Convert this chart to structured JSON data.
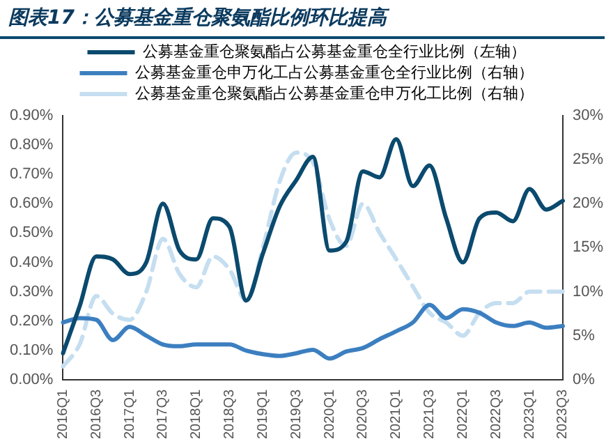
{
  "chart_data": {
    "type": "line",
    "title": "图表17：公募基金重仓聚氨酯比例环比提高",
    "categories": [
      "2016Q1",
      null,
      "2016Q3",
      null,
      "2017Q1",
      null,
      "2017Q3",
      null,
      "2018Q1",
      null,
      "2018Q3",
      null,
      "2019Q1",
      null,
      "2019Q3",
      null,
      "2020Q1",
      null,
      "2020Q3",
      null,
      "2021Q1",
      null,
      "2021Q3",
      null,
      "2022Q1",
      null,
      "2022Q3",
      null,
      "2023Q1",
      null,
      "2023Q3"
    ],
    "series": [
      {
        "name": "公募基金重仓聚氨酯占公募基金重仓全行业比例（左轴）",
        "color": "#0b4a6e",
        "line_style": "solid",
        "values": [
          0.09,
          0.25,
          0.42,
          0.41,
          0.36,
          0.4,
          0.6,
          0.44,
          0.41,
          0.55,
          0.52,
          0.27,
          0.43,
          0.59,
          0.68,
          0.76,
          0.44,
          0.47,
          0.71,
          0.69,
          0.82,
          0.66,
          0.73,
          0.55,
          0.4,
          0.55,
          0.57,
          0.54,
          0.65,
          0.58,
          0.61
        ]
      },
      {
        "name": "公募基金重仓申万化工占公募基金重仓全行业比例（右轴）",
        "color": "#3c7fc0",
        "axis": "y2",
        "line_style": "solid",
        "values": [
          6.5,
          7,
          6.8,
          4.5,
          6,
          5,
          4,
          3.8,
          4,
          4,
          4,
          3.3,
          2.9,
          2.7,
          3,
          3.4,
          2.4,
          3.2,
          3.6,
          4.6,
          5.5,
          6.5,
          8.5,
          7,
          8,
          7.6,
          6.5,
          6.1,
          6.5,
          5.9,
          6.1
        ]
      },
      {
        "name": "公募基金重仓聚氨酯占公募基金重仓申万化工比例（右轴）",
        "color": "#c5def0",
        "axis": "y2",
        "line_style": "dashed",
        "values": [
          1.5,
          4,
          9.5,
          7.5,
          6.8,
          10,
          16,
          12,
          10.5,
          14,
          12.5,
          9,
          15,
          22.5,
          25.8,
          24.7,
          18.2,
          15.2,
          20,
          16.7,
          13.7,
          10.6,
          7.6,
          6.5,
          5,
          7.6,
          8.7,
          8.7,
          10,
          10,
          10
        ]
      }
    ],
    "ylim": [
      0,
      0.9
    ],
    "yticks": [
      {
        "value": 0,
        "label": "0.00%"
      },
      {
        "value": 0.1,
        "label": "0.10%"
      },
      {
        "value": 0.2,
        "label": "0.20%"
      },
      {
        "value": 0.3,
        "label": "0.30%"
      },
      {
        "value": 0.4,
        "label": "0.40%"
      },
      {
        "value": 0.5,
        "label": "0.50%"
      },
      {
        "value": 0.6,
        "label": "0.60%"
      },
      {
        "value": 0.7,
        "label": "0.70%"
      },
      {
        "value": 0.8,
        "label": "0.80%"
      },
      {
        "value": 0.9,
        "label": "0.90%"
      }
    ],
    "y2lim": [
      0,
      30
    ],
    "y2ticks": [
      {
        "value": 0,
        "label": "0%"
      },
      {
        "value": 5,
        "label": "5%"
      },
      {
        "value": 10,
        "label": "10%"
      },
      {
        "value": 15,
        "label": "15%"
      },
      {
        "value": 20,
        "label": "20%"
      },
      {
        "value": 25,
        "label": "25%"
      },
      {
        "value": 30,
        "label": "30%"
      }
    ],
    "grid": false,
    "legend": "top",
    "marker": "none"
  }
}
